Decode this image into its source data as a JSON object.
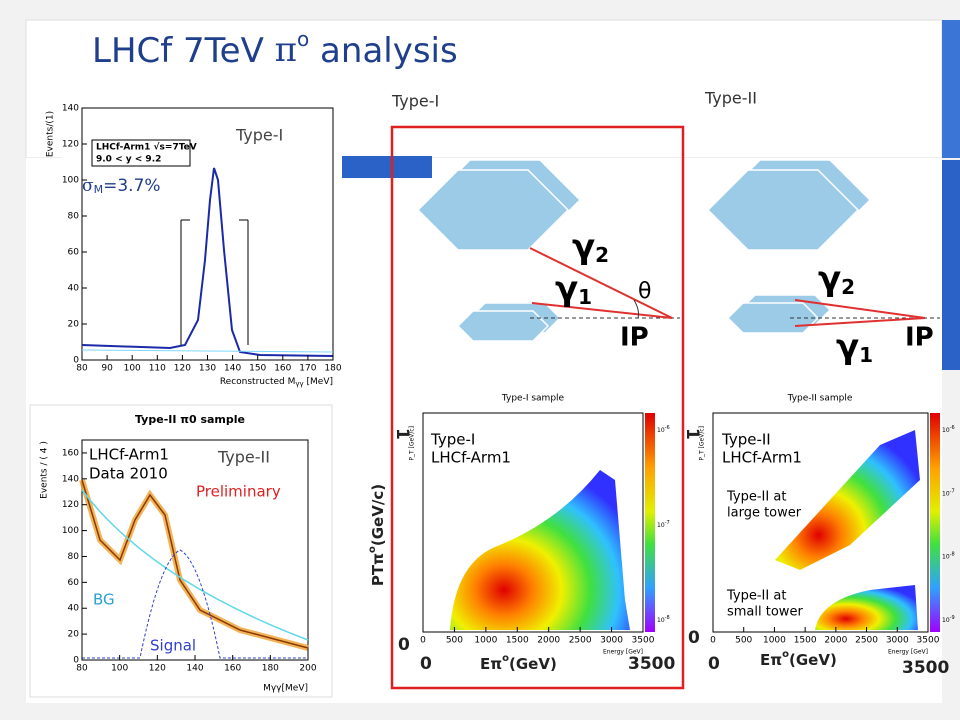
{
  "title": {
    "main": "LHCf 7TeV ",
    "pi": "π",
    "sup": "o",
    "rest": " analysis"
  },
  "labels": {
    "type1_top": "Type-I",
    "type2_top": "Type-II",
    "type1_left": "Type-I",
    "type2_left": "Type-II",
    "sigma": "σ",
    "sigma_sub": "M",
    "sigma_val": "=3.7%"
  },
  "plot1": {
    "ylabel": "Events/(1)",
    "xlabel": "Reconstructed M",
    "xlabel_sub": "γγ",
    "xlabel_unit": " [MeV]",
    "legend": [
      "LHCf-Arm1 √s=7TeV",
      "9.0 < y < 9.2"
    ],
    "xlim": [
      80,
      180
    ],
    "ylim": [
      0,
      140
    ],
    "xticks": [
      80,
      90,
      100,
      110,
      120,
      130,
      140,
      150,
      160,
      170,
      180
    ],
    "yticks": [
      0,
      20,
      40,
      60,
      80,
      100,
      120,
      140
    ]
  },
  "plot2": {
    "title": "Type-II π0 sample",
    "ylabel": "Events / ( 4 )",
    "xlabel": "Mγγ[MeV]",
    "legend": [
      "LHCf-Arm1",
      "Data 2010"
    ],
    "preliminary": "Preliminary",
    "bg": "BG",
    "signal": "Signal",
    "xlim": [
      80,
      200
    ],
    "ylim": [
      0,
      170
    ],
    "xticks": [
      80,
      100,
      120,
      140,
      160,
      180,
      200
    ],
    "yticks": [
      0,
      20,
      40,
      60,
      80,
      100,
      120,
      140,
      160
    ]
  },
  "diagram1": {
    "g2": "γ",
    "g2sub": "2",
    "g1": "γ",
    "g1sub": "1",
    "theta": "θ",
    "ip": "IP"
  },
  "diagram2": {
    "g2": "γ",
    "g2sub": "2",
    "g1": "γ",
    "g1sub": "1",
    "ip": "IP"
  },
  "scatter1": {
    "title": "Type-I sample",
    "legend": [
      "Type-I",
      "LHCf-Arm1"
    ],
    "xlabel": "Energy [GeV]",
    "ylabel": "P_T [GeV/c]",
    "xlim": [
      0,
      3500
    ],
    "xticks": [
      0,
      500,
      1000,
      1500,
      2000,
      2500,
      3000,
      3500
    ],
    "cbar": [
      {
        "base": "10",
        "exp": "-6"
      },
      {
        "base": "10",
        "exp": "-7"
      },
      {
        "base": "10",
        "exp": "-8"
      }
    ]
  },
  "scatter2": {
    "title": "Type-II sample",
    "legend": [
      "Type-II",
      "LHCf-Arm1"
    ],
    "note_large": [
      "Type-II at",
      "large tower"
    ],
    "note_small": [
      "Type-II at",
      "small tower"
    ],
    "xlabel": "Energy [GeV]",
    "ylabel": "P_T [GeV/c]",
    "xlim": [
      0,
      3500
    ],
    "xticks": [
      0,
      500,
      1000,
      1500,
      2000,
      2500,
      3000,
      3500
    ],
    "cbar": [
      {
        "base": "10",
        "exp": "-6"
      },
      {
        "base": "10",
        "exp": "-7"
      },
      {
        "base": "10",
        "exp": "-8"
      },
      {
        "base": "10",
        "exp": "-9"
      }
    ]
  },
  "overlay1": {
    "one": "1",
    "zero_y": "0",
    "zero_x": "0",
    "max_x": "3500",
    "e_label": "Eπ",
    "e_sup": "o",
    "e_unit": "(GeV)",
    "pt_label": "PTπ",
    "pt_sup": "o",
    "pt_unit": "(GeV/c)"
  },
  "overlay2": {
    "one": "1",
    "zero_y": "0",
    "zero_x": "0",
    "max_x": "3500",
    "e_label": "Eπ",
    "e_sup": "o",
    "e_unit": "(GeV)"
  }
}
